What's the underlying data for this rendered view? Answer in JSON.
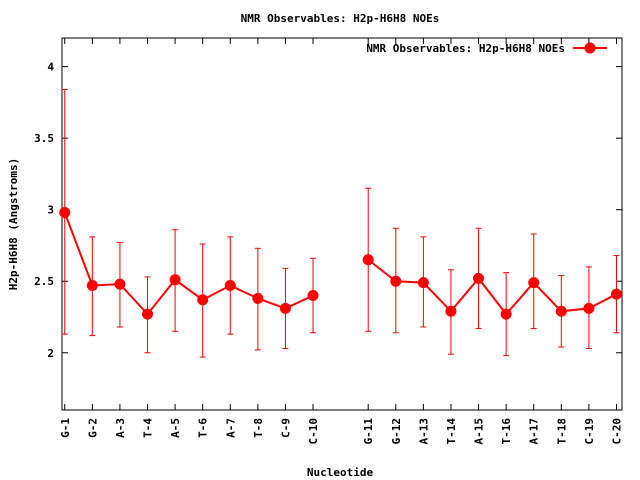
{
  "chart_data": {
    "type": "line",
    "title": "NMR Observables: H2p-H6H8 NOEs",
    "xlabel": "Nucleotide",
    "ylabel": "H2p-H6H8 (Angstroms)",
    "ylim": [
      1.6,
      4.2
    ],
    "yticks": [
      "2",
      "2.5",
      "3",
      "3.5",
      "4"
    ],
    "x": [
      1,
      2,
      3,
      4,
      5,
      6,
      7,
      8,
      9,
      10,
      12,
      13,
      14,
      15,
      16,
      17,
      18,
      19,
      20,
      21
    ],
    "xlim": [
      0.9,
      21.2
    ],
    "categories": [
      "G-1",
      "G-2",
      "A-3",
      "T-4",
      "A-5",
      "T-6",
      "A-7",
      "T-8",
      "C-9",
      "C-10",
      "G-11",
      "G-12",
      "A-13",
      "T-14",
      "A-15",
      "T-16",
      "A-17",
      "T-18",
      "C-19",
      "C-20"
    ],
    "series": [
      {
        "name": "NMR Observables: H2p-H6H8 NOEs",
        "color": "#ff0000",
        "segments": [
          [
            0,
            9
          ],
          [
            10,
            19
          ]
        ],
        "values": [
          2.98,
          2.47,
          2.48,
          2.27,
          2.51,
          2.37,
          2.47,
          2.38,
          2.31,
          2.4,
          2.65,
          2.5,
          2.49,
          2.29,
          2.52,
          2.27,
          2.49,
          2.29,
          2.31,
          2.41
        ],
        "err_low": [
          2.13,
          2.12,
          2.18,
          2.0,
          2.15,
          1.97,
          2.13,
          2.02,
          2.03,
          2.14,
          2.15,
          2.14,
          2.18,
          1.99,
          2.17,
          1.98,
          2.17,
          2.04,
          2.03,
          2.14
        ],
        "err_high": [
          3.84,
          2.81,
          2.77,
          2.53,
          2.86,
          2.76,
          2.81,
          2.73,
          2.59,
          2.66,
          3.15,
          2.87,
          2.81,
          2.58,
          2.87,
          2.56,
          2.83,
          2.54,
          2.6,
          2.68
        ]
      }
    ],
    "legend": "top-right",
    "grid": false
  }
}
